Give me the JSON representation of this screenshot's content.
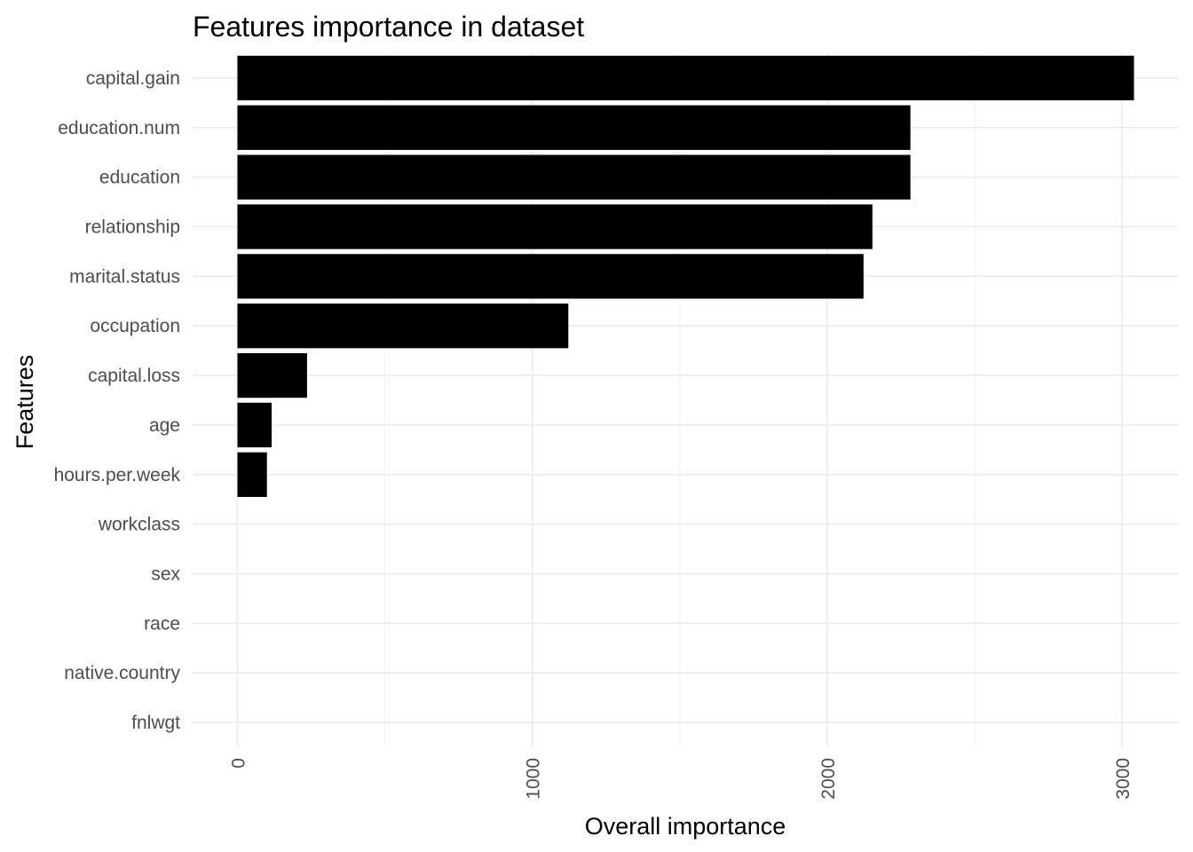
{
  "chart_data": {
    "type": "bar",
    "orientation": "horizontal",
    "title": "Features importance in dataset",
    "xlabel": "Overall importance",
    "ylabel": "Features",
    "categories": [
      "capital.gain",
      "education.num",
      "education",
      "relationship",
      "marital.status",
      "occupation",
      "capital.loss",
      "age",
      "hours.per.week",
      "workclass",
      "sex",
      "race",
      "native.country",
      "fnlwgt"
    ],
    "values": [
      3040,
      2282,
      2282,
      2153,
      2123,
      1122,
      236,
      116,
      100,
      0,
      0,
      0,
      0,
      0
    ],
    "xlim": [
      -152,
      3192
    ],
    "xticks": [
      0,
      1000,
      2000,
      3000
    ],
    "xtick_labels": [
      "0",
      "1000",
      "2000",
      "3000"
    ],
    "grid": true,
    "bar_color": "#000000"
  }
}
